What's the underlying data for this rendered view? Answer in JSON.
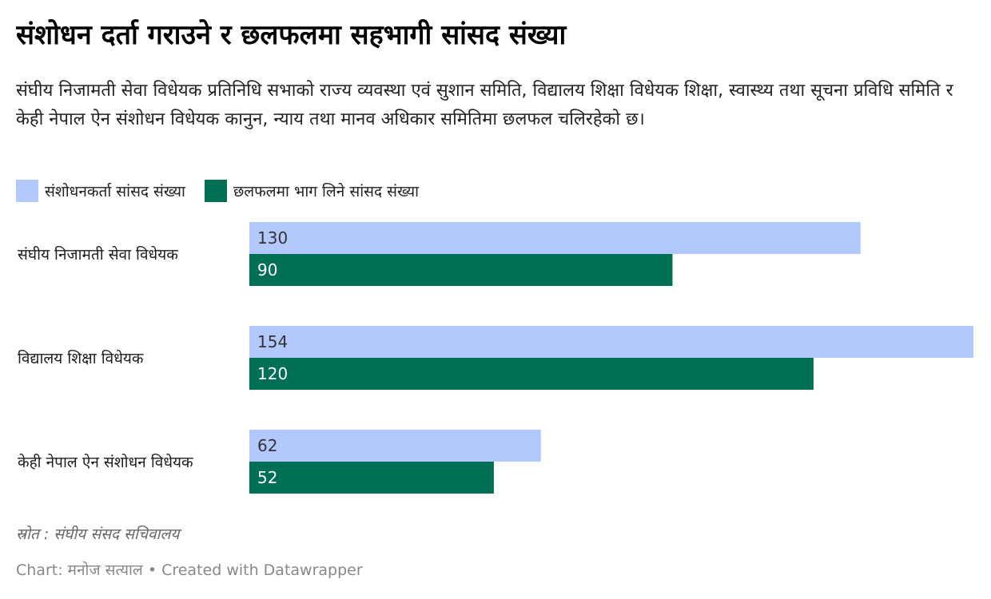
{
  "title": "संशोधन दर्ता गराउने र छलफलमा सहभागी सांसद संख्या",
  "subtitle": "संघीय निजामती सेवा विधेयक प्रतिनिधि सभाको राज्य व्यवस्था एवं सुशान समिति, विद्यालय शिक्षा विधेयक शिक्षा, स्वास्थ्य तथा सूचना प्रविधि समिति र केही नेपाल ऐन संशोधन विधेयक कानुन, न्याय तथा मानव अधिकार समितिमा छलफल चलिरहेको छ।",
  "source": "स्रोत : संघीय संसद सचिवालय",
  "footer": "Chart: मनोज सत्याल • Created with Datawrapper",
  "colors": {
    "series1": "#b3c9fd",
    "series2": "#006f54",
    "label_on_light": "#333333",
    "label_on_dark": "#ffffff"
  },
  "chart_data": {
    "type": "bar",
    "orientation": "horizontal",
    "categories": [
      "संघीय निजामती सेवा विधेयक",
      "विद्यालय शिक्षा विधेयक",
      "केही नेपाल ऐन संशोधन विधेयक"
    ],
    "series": [
      {
        "name": "संशोधनकर्ता सांसद संख्या",
        "values": [
          130,
          154,
          62
        ]
      },
      {
        "name": "छलफलमा भाग लिने सांसद संख्या",
        "values": [
          90,
          120,
          52
        ]
      }
    ],
    "xlim": [
      0,
      154
    ],
    "grid": false,
    "legend_position": "top-left"
  }
}
